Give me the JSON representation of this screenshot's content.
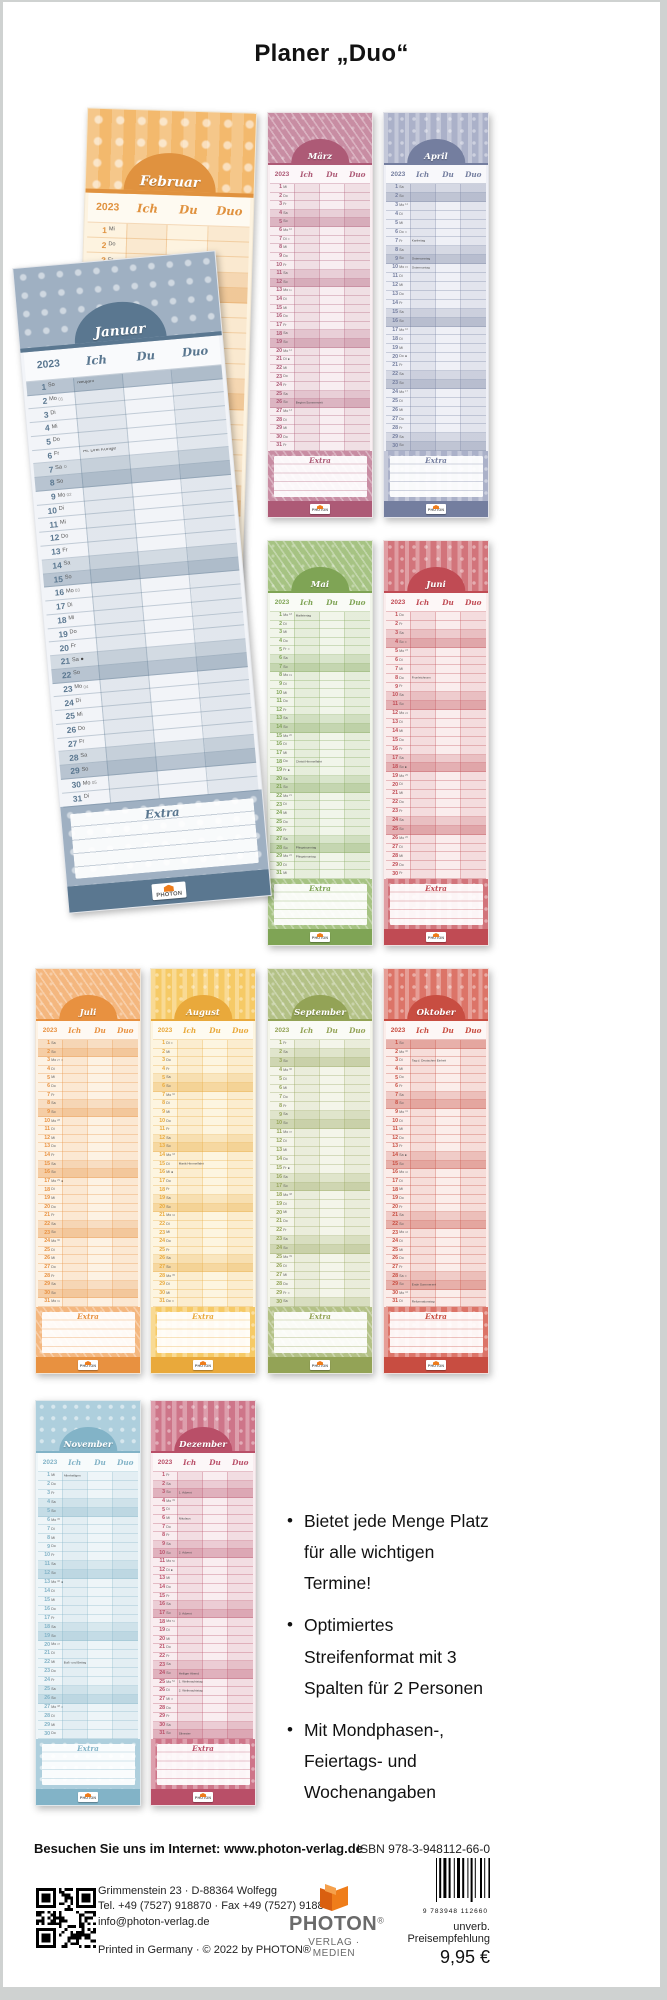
{
  "page": {
    "title": "Planer „Duo“"
  },
  "calendar": {
    "year": "2023",
    "columns": [
      "Ich",
      "Du",
      "Duo"
    ],
    "extra_label": "Extra",
    "brand": "PHOTON",
    "weekdays": [
      "Mo",
      "Di",
      "Mi",
      "Do",
      "Fr",
      "Sa",
      "So"
    ],
    "months": [
      {
        "name": "Januar",
        "days": 31,
        "first_dow": 6,
        "pattern": "dots",
        "head": "#9fb0c2",
        "dark": "#5a7790",
        "body": "#f2f4f8",
        "holidays": {
          "1": "Neujahr",
          "6": "Hl. Drei Könige"
        },
        "moons": {
          "7": "○",
          "21": "●"
        }
      },
      {
        "name": "Februar",
        "days": 28,
        "first_dow": 2,
        "pattern": "stars",
        "head": "#f3b96d",
        "dark": "#e0923f",
        "body": "#fdf3e0",
        "holidays": {},
        "moons": {
          "5": "○",
          "20": "●"
        }
      },
      {
        "name": "März",
        "days": 31,
        "first_dow": 2,
        "pattern": "leaves",
        "head": "#c88da3",
        "dark": "#ad5a76",
        "body": "#f8eef1",
        "holidays": {
          "26": "Beginn Sommerzeit"
        },
        "moons": {
          "7": "○",
          "21": "●"
        }
      },
      {
        "name": "April",
        "days": 30,
        "first_dow": 5,
        "pattern": "stripes",
        "head": "#abb1c9",
        "dark": "#747e9f",
        "body": "#eff0f6",
        "holidays": {
          "7": "Karfreitag",
          "9": "Ostersonntag",
          "10": "Ostermontag"
        },
        "moons": {
          "6": "○",
          "20": "●"
        }
      },
      {
        "name": "Mai",
        "days": 31,
        "first_dow": 0,
        "pattern": "leaves",
        "head": "#a6c383",
        "dark": "#7fa455",
        "body": "#f1f5ea",
        "holidays": {
          "1": "Maifeiertag",
          "18": "Christi Himmelfahrt",
          "28": "Pfingstsonntag",
          "29": "Pfingstmontag"
        },
        "moons": {
          "5": "○",
          "19": "●"
        }
      },
      {
        "name": "Juni",
        "days": 30,
        "first_dow": 3,
        "pattern": "stripes",
        "head": "#d2747b",
        "dark": "#c04b54",
        "body": "#faeded",
        "holidays": {
          "8": "Fronleichnam"
        },
        "moons": {
          "4": "○",
          "18": "●"
        }
      },
      {
        "name": "Juli",
        "days": 31,
        "first_dow": 5,
        "pattern": "leaves",
        "head": "#f4b77f",
        "dark": "#e89140",
        "body": "#fdf2e4",
        "holidays": {},
        "moons": {
          "3": "○",
          "17": "●"
        }
      },
      {
        "name": "August",
        "days": 31,
        "first_dow": 1,
        "pattern": "stripes",
        "head": "#f6ca66",
        "dark": "#e9a93b",
        "body": "#fdf5e0",
        "holidays": {
          "15": "Mariä Himmelfahrt"
        },
        "moons": {
          "1": "○",
          "16": "●",
          "31": "○"
        }
      },
      {
        "name": "September",
        "days": 30,
        "first_dow": 4,
        "pattern": "leaves",
        "head": "#b3c186",
        "dark": "#93a356",
        "body": "#f4f5ea",
        "holidays": {},
        "moons": {
          "15": "●",
          "29": "○"
        }
      },
      {
        "name": "Oktober",
        "days": 31,
        "first_dow": 6,
        "pattern": "stripes",
        "head": "#dc7468",
        "dark": "#c84d41",
        "body": "#fbedea",
        "holidays": {
          "3": "Tag d. Deutschen Einheit",
          "29": "Ende Sommerzeit",
          "31": "Reformationstag"
        },
        "moons": {
          "14": "●",
          "28": "○"
        }
      },
      {
        "name": "November",
        "days": 30,
        "first_dow": 2,
        "pattern": "dots",
        "head": "#aecfdd",
        "dark": "#82b3c7",
        "body": "#eef5f8",
        "holidays": {
          "1": "Allerheiligen",
          "22": "Buß- und Bettag"
        },
        "moons": {
          "13": "●",
          "27": "○"
        }
      },
      {
        "name": "Dezember",
        "days": 31,
        "first_dow": 4,
        "pattern": "stripes",
        "head": "#ce7589",
        "dark": "#b94f68",
        "body": "#f9edf0",
        "holidays": {
          "3": "1. Advent",
          "6": "Nikolaus",
          "10": "2. Advent",
          "17": "3. Advent",
          "24": "Heiliger Abend",
          "25": "1. Weihnachtstag",
          "26": "2. Weihnachtstag",
          "31": "Silvester"
        },
        "moons": {
          "12": "●",
          "27": "○"
        }
      }
    ]
  },
  "bullets": [
    "Bietet jede Menge Platz für alle wichtigen Termine!",
    "Optimiertes Streifenformat mit 3 Spalten für 2 Personen",
    "Mit Mondphasen-, Feiertags- und Wochenangaben"
  ],
  "footer": {
    "visit": "Besuchen Sie uns im Internet: www.photon-verlag.de",
    "isbn": "ISBN 978-3-948112-66-0",
    "address_line1": "Grimmenstein 23 · D-88364 Wolfegg",
    "address_line2": "Tel. +49 (7527) 918870 · Fax +49 (7527) 918868",
    "address_line3": "info@photon-verlag.de",
    "printed": "Printed in Germany · © 2022 by PHOTON®",
    "logo_name": "PHOTON",
    "logo_reg": "®",
    "logo_sub": "VERLAG · MEDIEN",
    "barcode_digits": "9 783948 112660",
    "price_note": "unverb. Preisempfehlung",
    "price": "9,95 €",
    "brand_orange": "#ee7c1b"
  }
}
